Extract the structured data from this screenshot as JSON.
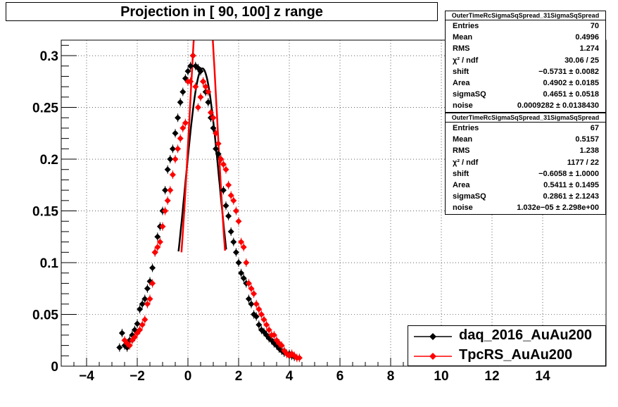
{
  "title": "Projection in [  90, 100] z range",
  "stats_panels": [
    {
      "header": "OuterTimeRcSigmaSqSpread_31SigmaSqSpread",
      "rows": [
        {
          "name": "Entries",
          "value": "70"
        },
        {
          "name": "Mean",
          "value": "0.4996"
        },
        {
          "name": "RMS",
          "value": "1.274"
        },
        {
          "name": "χ² / ndf",
          "value": "30.06 / 25"
        },
        {
          "name": "shift",
          "value": "−0.5731 ± 0.0082"
        },
        {
          "name": "Area",
          "value": "0.4902 ± 0.0185"
        },
        {
          "name": "sigmaSQ",
          "value": "0.4651 ± 0.0518"
        },
        {
          "name": "noise",
          "value": "0.0009282 ± 0.0138430"
        }
      ]
    },
    {
      "header": "OuterTimeRcSigmaSqSpread_31SigmaSqSpread",
      "rows": [
        {
          "name": "Entries",
          "value": "67"
        },
        {
          "name": "Mean",
          "value": "0.5157"
        },
        {
          "name": "RMS",
          "value": "1.238"
        },
        {
          "name": "χ² / ndf",
          "value": "1177 / 22"
        },
        {
          "name": "shift",
          "value": "−0.6058 ± 1.0000"
        },
        {
          "name": "Area",
          "value": "0.5411 ± 0.1495"
        },
        {
          "name": "sigmaSQ",
          "value": "0.2861 ± 2.1243"
        },
        {
          "name": "noise",
          "value": "1.032e−05 ± 2.298e+00"
        }
      ]
    }
  ],
  "legend": [
    {
      "label": "daq_2016_AuAu200",
      "color": "#000000"
    },
    {
      "label": "TpcRS_AuAu200",
      "color": "#ff0000"
    }
  ],
  "chart_data": {
    "type": "scatter",
    "title": "Projection in [  90, 100] z range",
    "xlabel": "",
    "ylabel": "",
    "xlim": [
      -5,
      16.5
    ],
    "ylim": [
      0,
      0.315
    ],
    "grid": true,
    "legend_position": "bottom-right",
    "x_ticks": [
      -4,
      -2,
      0,
      2,
      4,
      6,
      8,
      10,
      12,
      14
    ],
    "x_tick_labels": [
      "−4",
      "−2",
      "0",
      "2",
      "4",
      "6",
      "8",
      "10",
      "12",
      "14"
    ],
    "y_ticks": [
      0,
      0.05,
      0.1,
      0.15,
      0.2,
      0.25,
      0.3
    ],
    "y_tick_labels": [
      "0",
      "0.05",
      "0.1",
      "0.15",
      "0.2",
      "0.25",
      "0.3"
    ],
    "series": [
      {
        "name": "daq_2016_AuAu200",
        "color": "#000000",
        "x": [
          -2.7,
          -2.6,
          -2.5,
          -2.4,
          -2.3,
          -2.2,
          -2.1,
          -2.0,
          -1.9,
          -1.8,
          -1.7,
          -1.6,
          -1.5,
          -1.4,
          -1.3,
          -1.2,
          -1.1,
          -1.0,
          -0.9,
          -0.8,
          -0.7,
          -0.6,
          -0.5,
          -0.4,
          -0.3,
          -0.2,
          -0.1,
          0.0,
          0.1,
          0.2,
          0.3,
          0.4,
          0.5,
          0.6,
          0.7,
          0.8,
          0.9,
          1.0,
          1.1,
          1.2,
          1.3,
          1.4,
          1.5,
          1.6,
          1.7,
          1.8,
          1.9,
          2.0,
          2.1,
          2.2,
          2.3,
          2.4,
          2.5,
          2.6,
          2.7,
          2.8,
          2.9,
          3.0,
          3.1,
          3.2,
          3.3,
          3.4,
          3.5,
          3.6,
          3.7,
          3.8,
          3.9,
          4.0,
          4.1,
          4.2
        ],
        "y": [
          0.018,
          0.032,
          0.02,
          0.018,
          0.025,
          0.03,
          0.035,
          0.041,
          0.055,
          0.06,
          0.065,
          0.075,
          0.082,
          0.095,
          0.11,
          0.125,
          0.135,
          0.15,
          0.17,
          0.19,
          0.2,
          0.21,
          0.225,
          0.24,
          0.255,
          0.265,
          0.278,
          0.285,
          0.29,
          0.3,
          0.29,
          0.288,
          0.285,
          0.275,
          0.265,
          0.255,
          0.24,
          0.23,
          0.21,
          0.205,
          0.2,
          0.17,
          0.155,
          0.145,
          0.13,
          0.12,
          0.11,
          0.1,
          0.09,
          0.085,
          0.08,
          0.065,
          0.06,
          0.05,
          0.048,
          0.04,
          0.035,
          0.033,
          0.03,
          0.027,
          0.025,
          0.022,
          0.02,
          0.017,
          0.015,
          0.013,
          0.012,
          0.012,
          0.01,
          0.009
        ]
      },
      {
        "name": "TpcRS_AuAu200",
        "color": "#ff0000",
        "x": [
          -2.5,
          -2.4,
          -2.3,
          -2.2,
          -2.1,
          -2.0,
          -1.9,
          -1.8,
          -1.7,
          -1.6,
          -1.5,
          -1.4,
          -1.3,
          -1.2,
          -1.1,
          -1.0,
          -0.9,
          -0.8,
          -0.7,
          -0.6,
          -0.5,
          -0.4,
          -0.3,
          -0.2,
          -0.1,
          0.0,
          0.1,
          0.2,
          0.3,
          0.4,
          0.5,
          0.6,
          0.7,
          0.8,
          0.9,
          1.0,
          1.1,
          1.2,
          1.3,
          1.4,
          1.5,
          1.6,
          1.7,
          1.8,
          1.9,
          2.0,
          2.1,
          2.2,
          2.3,
          2.4,
          2.5,
          2.6,
          2.7,
          2.8,
          2.9,
          3.0,
          3.1,
          3.2,
          3.3,
          3.4,
          3.5,
          3.6,
          3.7,
          3.8,
          3.9,
          4.0,
          4.1,
          4.2,
          4.3,
          4.4
        ],
        "y": [
          0.025,
          0.022,
          0.02,
          0.025,
          0.028,
          0.032,
          0.035,
          0.04,
          0.045,
          0.06,
          0.065,
          0.08,
          0.11,
          0.115,
          0.12,
          0.135,
          0.15,
          0.16,
          0.17,
          0.185,
          0.2,
          0.21,
          0.22,
          0.23,
          0.235,
          0.275,
          0.275,
          0.3,
          0.27,
          0.25,
          0.26,
          0.275,
          0.27,
          0.265,
          0.245,
          0.24,
          0.225,
          0.215,
          0.2,
          0.195,
          0.19,
          0.175,
          0.165,
          0.16,
          0.15,
          0.14,
          0.12,
          0.115,
          0.1,
          0.08,
          0.075,
          0.07,
          0.06,
          0.055,
          0.05,
          0.045,
          0.04,
          0.035,
          0.03,
          0.03,
          0.025,
          0.022,
          0.02,
          0.015,
          0.012,
          0.01,
          0.012,
          0.01,
          0.008,
          0.008
        ]
      }
    ],
    "fits": [
      {
        "series": "daq_2016_AuAu200",
        "color": "#000000",
        "shift": -0.5731,
        "area": 0.4902,
        "sigmaSQ": 0.4651,
        "noise": 0.0009282
      },
      {
        "series": "TpcRS_AuAu200",
        "color": "#ff0000",
        "shift": -0.6058,
        "area": 0.5411,
        "sigmaSQ": 0.2861,
        "noise": 1.032e-05
      }
    ]
  }
}
